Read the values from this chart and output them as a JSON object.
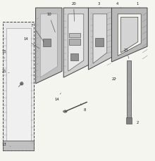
{
  "bg_color": "#f5f5f0",
  "line_color": "#808080",
  "dark_color": "#404040",
  "light_gray": "#c8c8c8",
  "mid_gray": "#909090"
}
